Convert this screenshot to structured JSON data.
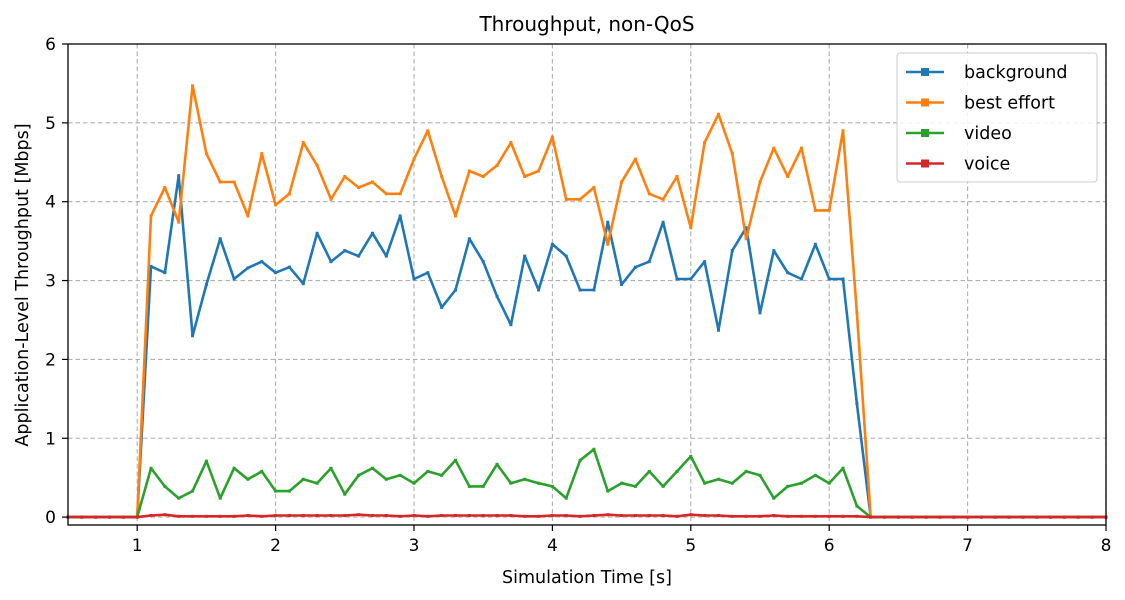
{
  "chart_data": {
    "type": "line",
    "title": "Throughput, non-QoS",
    "xlabel": "Simulation Time [s]",
    "ylabel": "Application-Level Throughput [Mbps]",
    "xlim": [
      0.5,
      8
    ],
    "ylim": [
      -0.1,
      6
    ],
    "xticks": [
      1,
      2,
      3,
      4,
      5,
      6,
      7,
      8
    ],
    "yticks": [
      0,
      1,
      2,
      3,
      4,
      5,
      6
    ],
    "grid": true,
    "legend_position": "top-right",
    "x": [
      0.5,
      0.6,
      0.7,
      0.8,
      0.9,
      1.0,
      1.1,
      1.2,
      1.3,
      1.4,
      1.5,
      1.6,
      1.7,
      1.8,
      1.9,
      2.0,
      2.1,
      2.2,
      2.3,
      2.4,
      2.5,
      2.6,
      2.7,
      2.8,
      2.9,
      3.0,
      3.1,
      3.2,
      3.3,
      3.4,
      3.5,
      3.6,
      3.7,
      3.8,
      3.9,
      4.0,
      4.1,
      4.2,
      4.3,
      4.4,
      4.5,
      4.6,
      4.7,
      4.8,
      4.9,
      5.0,
      5.1,
      5.2,
      5.3,
      5.4,
      5.5,
      5.6,
      5.7,
      5.8,
      5.9,
      6.0,
      6.1,
      6.2,
      6.3,
      6.4,
      6.5,
      6.6,
      6.7,
      6.8,
      6.9,
      7.0,
      7.1,
      7.2,
      7.3,
      7.4,
      7.5,
      7.6,
      7.7,
      7.8,
      7.9,
      8.0
    ],
    "series": [
      {
        "name": "background",
        "color": "#1f77b4",
        "values": [
          0,
          0,
          0,
          0,
          0,
          0,
          3.18,
          3.1,
          4.33,
          2.3,
          2.95,
          3.53,
          3.02,
          3.16,
          3.24,
          3.1,
          3.17,
          2.96,
          3.6,
          3.24,
          3.38,
          3.31,
          3.6,
          3.31,
          3.82,
          3.02,
          3.1,
          2.66,
          2.88,
          3.53,
          3.24,
          2.8,
          2.44,
          3.31,
          2.88,
          3.46,
          3.31,
          2.88,
          2.88,
          3.74,
          2.95,
          3.17,
          3.24,
          3.74,
          3.02,
          3.02,
          3.24,
          2.37,
          3.38,
          3.67,
          2.59,
          3.38,
          3.1,
          3.02,
          3.46,
          3.02,
          3.02,
          1.44,
          0,
          0,
          0,
          0,
          0,
          0,
          0,
          0,
          0,
          0,
          0,
          0,
          0,
          0,
          0,
          0,
          0,
          0
        ]
      },
      {
        "name": "best effort",
        "color": "#ff7f0e",
        "values": [
          0,
          0,
          0,
          0,
          0,
          0,
          3.82,
          4.18,
          3.74,
          5.47,
          4.61,
          4.25,
          4.25,
          3.82,
          4.61,
          3.96,
          4.1,
          4.75,
          4.46,
          4.03,
          4.32,
          4.18,
          4.25,
          4.1,
          4.1,
          4.54,
          4.9,
          4.32,
          3.82,
          4.39,
          4.32,
          4.46,
          4.75,
          4.32,
          4.39,
          4.82,
          4.03,
          4.03,
          4.18,
          3.46,
          4.25,
          4.54,
          4.1,
          4.03,
          4.32,
          3.67,
          4.75,
          5.11,
          4.61,
          3.53,
          4.25,
          4.68,
          4.32,
          4.68,
          3.89,
          3.89,
          4.9,
          2.59,
          0,
          0,
          0,
          0,
          0,
          0,
          0,
          0,
          0,
          0,
          0,
          0,
          0,
          0,
          0,
          0,
          0,
          0
        ]
      },
      {
        "name": "video",
        "color": "#2ca02c",
        "values": [
          0,
          0,
          0,
          0,
          0,
          0,
          0.62,
          0.39,
          0.24,
          0.33,
          0.71,
          0.24,
          0.62,
          0.48,
          0.58,
          0.33,
          0.33,
          0.48,
          0.43,
          0.62,
          0.29,
          0.53,
          0.62,
          0.48,
          0.53,
          0.43,
          0.58,
          0.53,
          0.72,
          0.39,
          0.39,
          0.67,
          0.43,
          0.48,
          0.43,
          0.39,
          0.24,
          0.72,
          0.86,
          0.33,
          0.43,
          0.39,
          0.58,
          0.39,
          0.58,
          0.77,
          0.43,
          0.48,
          0.43,
          0.58,
          0.53,
          0.24,
          0.39,
          0.43,
          0.53,
          0.43,
          0.62,
          0.14,
          0,
          0,
          0,
          0,
          0,
          0,
          0,
          0,
          0,
          0,
          0,
          0,
          0,
          0,
          0,
          0,
          0,
          0
        ]
      },
      {
        "name": "voice",
        "color": "#d62728",
        "values": [
          0,
          0,
          0,
          0,
          0,
          0,
          0.02,
          0.03,
          0.01,
          0.01,
          0.01,
          0.01,
          0.01,
          0.02,
          0.01,
          0.02,
          0.02,
          0.02,
          0.02,
          0.02,
          0.02,
          0.03,
          0.02,
          0.02,
          0.01,
          0.02,
          0.01,
          0.02,
          0.02,
          0.02,
          0.02,
          0.02,
          0.02,
          0.01,
          0.01,
          0.02,
          0.02,
          0.01,
          0.02,
          0.03,
          0.02,
          0.02,
          0.02,
          0.02,
          0.01,
          0.03,
          0.02,
          0.02,
          0.01,
          0.01,
          0.01,
          0.02,
          0.01,
          0.01,
          0.01,
          0.01,
          0.01,
          0.01,
          0,
          0,
          0,
          0,
          0,
          0,
          0,
          0,
          0,
          0,
          0,
          0,
          0,
          0,
          0,
          0,
          0,
          0
        ]
      }
    ]
  }
}
